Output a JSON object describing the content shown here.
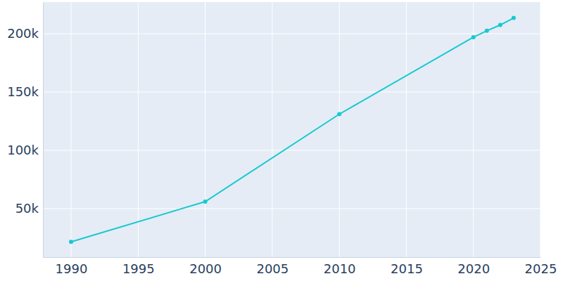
{
  "chart_data": {
    "type": "line",
    "x": [
      1990,
      2000,
      2010,
      2020,
      2021,
      2022,
      2023
    ],
    "values": [
      21500,
      56000,
      131000,
      197000,
      202500,
      207500,
      213500
    ],
    "color": "#17c9cf",
    "marker": "circle",
    "xlim": [
      1987.9,
      2025
    ],
    "xticks": [
      1990,
      1995,
      2000,
      2005,
      2010,
      2015,
      2020,
      2025
    ],
    "ylim": [
      8400,
      227100
    ],
    "yticks": [
      {
        "value": 50000,
        "label": "50k"
      },
      {
        "value": 100000,
        "label": "100k"
      },
      {
        "value": 150000,
        "label": "150k"
      },
      {
        "value": 200000,
        "label": "200k"
      }
    ],
    "grid": true
  }
}
